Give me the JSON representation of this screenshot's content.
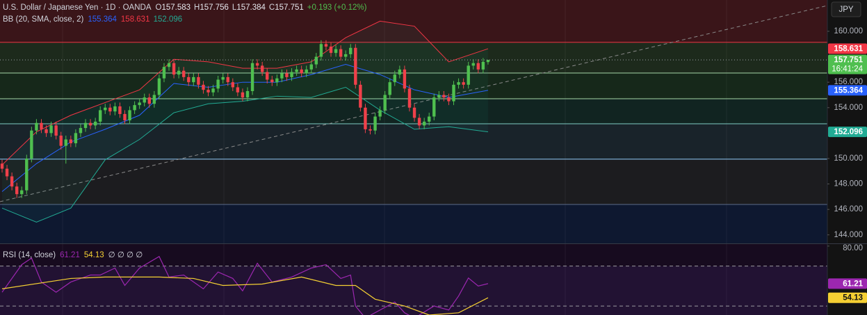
{
  "header": {
    "symbol": "U.S. Dollar / Japanese Yen · 1D · OANDA",
    "ohlc": [
      {
        "key": "O",
        "value": "157.583"
      },
      {
        "key": "H",
        "value": "157.756"
      },
      {
        "key": "L",
        "value": "157.384"
      },
      {
        "key": "C",
        "value": "157.751"
      }
    ],
    "change": "+0.193 (+0.12%)",
    "bb_label": "BB (20, SMA, close, 2)",
    "bb_values": [
      {
        "text": "155.364",
        "color": "#2962ff"
      },
      {
        "text": "158.631",
        "color": "#f23645"
      },
      {
        "text": "152.096",
        "color": "#22ab94"
      }
    ],
    "rsi_label": "RSI (14, close)",
    "rsi_values": [
      {
        "text": "61.21",
        "color": "#9c27b0"
      },
      {
        "text": "54.13",
        "color": "#f5d033"
      }
    ],
    "rsi_extra": "∅ ∅ ∅ ∅",
    "currency": "JPY"
  },
  "chart_data": {
    "type": "candlestick",
    "open": [
      149.6,
      149.2,
      148.6,
      147.8,
      147.2,
      147.5,
      150.0,
      152.2,
      152.8,
      152.3,
      152.0,
      152.6,
      151.8,
      151.0,
      151.5,
      151.2,
      152.0,
      152.4,
      152.8,
      152.6,
      152.9,
      153.8,
      154.0,
      153.7,
      154.1,
      153.5,
      153.0,
      153.8,
      154.2,
      154.4,
      154.8,
      154.3,
      155.0,
      156.3,
      157.2,
      157.5,
      156.6,
      156.9,
      156.4,
      156.0,
      156.4,
      155.8,
      155.4,
      155.2,
      155.5,
      156.2,
      156.4,
      156.0,
      155.6,
      155.2,
      154.8,
      155.3,
      157.5,
      157.3,
      156.8,
      156.2,
      156.0,
      156.3,
      156.7,
      156.4,
      156.8,
      157.0,
      156.7,
      157.0,
      157.4,
      158.0,
      159.0,
      158.8,
      158.3,
      158.6,
      158.0,
      158.2,
      158.7,
      155.8,
      154.0,
      152.3,
      152.2,
      153.3,
      153.8,
      155.0,
      156.0,
      156.6,
      157.0,
      155.5,
      154.0,
      153.2,
      152.6,
      152.9,
      153.3,
      154.8,
      155.0,
      154.8,
      154.5,
      155.8,
      156.0,
      155.8,
      157.3,
      157.5,
      157.0,
      157.583
    ],
    "high": [
      149.9,
      149.5,
      148.9,
      148.1,
      147.8,
      150.3,
      152.5,
      153.1,
      153.1,
      152.6,
      152.9,
      152.9,
      152.1,
      151.8,
      151.8,
      152.3,
      152.7,
      153.1,
      153.1,
      153.2,
      154.1,
      154.3,
      154.3,
      154.4,
      154.4,
      153.8,
      154.1,
      154.5,
      154.7,
      155.1,
      155.1,
      155.3,
      156.6,
      157.5,
      157.8,
      157.8,
      157.2,
      157.2,
      156.7,
      156.7,
      156.7,
      156.1,
      155.7,
      155.8,
      156.5,
      156.7,
      156.7,
      156.3,
      155.9,
      155.5,
      155.6,
      157.8,
      157.8,
      157.6,
      157.1,
      156.5,
      156.6,
      157.0,
      157.0,
      157.1,
      157.3,
      157.3,
      157.3,
      157.7,
      158.3,
      159.3,
      159.3,
      159.1,
      158.9,
      158.9,
      158.5,
      159.0,
      159.0,
      156.1,
      154.3,
      152.6,
      153.6,
      154.1,
      155.3,
      156.3,
      156.9,
      157.3,
      157.3,
      155.8,
      154.3,
      153.5,
      153.2,
      153.6,
      155.1,
      155.3,
      155.3,
      155.1,
      156.1,
      156.3,
      156.3,
      157.6,
      157.8,
      157.8,
      157.9,
      157.756
    ],
    "low": [
      148.9,
      148.3,
      147.5,
      146.9,
      146.9,
      147.2,
      149.7,
      151.9,
      152.0,
      151.7,
      151.7,
      151.5,
      150.7,
      149.6,
      150.9,
      150.9,
      151.7,
      152.1,
      152.3,
      152.3,
      152.6,
      153.5,
      153.4,
      153.4,
      153.2,
      152.7,
      152.7,
      153.5,
      153.9,
      154.1,
      154.0,
      154.0,
      154.7,
      156.0,
      156.9,
      156.3,
      156.3,
      156.1,
      155.7,
      155.7,
      155.5,
      155.1,
      154.9,
      154.9,
      155.2,
      155.9,
      155.7,
      155.3,
      154.9,
      154.5,
      154.5,
      155.0,
      157.0,
      156.5,
      155.9,
      155.7,
      155.7,
      156.0,
      156.1,
      156.1,
      156.5,
      156.4,
      156.4,
      156.7,
      157.1,
      157.7,
      158.5,
      158.0,
      158.0,
      157.7,
      157.7,
      157.9,
      155.5,
      153.7,
      152.0,
      151.9,
      151.9,
      153.0,
      153.5,
      154.7,
      155.7,
      156.3,
      155.2,
      153.7,
      152.9,
      152.3,
      152.3,
      152.6,
      153.0,
      154.5,
      154.5,
      154.2,
      154.2,
      155.5,
      155.5,
      155.5,
      157.0,
      156.7,
      156.7,
      157.384
    ],
    "close": [
      149.2,
      148.6,
      147.8,
      147.2,
      147.5,
      150.0,
      152.2,
      152.8,
      152.3,
      152.0,
      152.6,
      151.8,
      151.0,
      151.5,
      151.2,
      152.0,
      152.4,
      152.8,
      152.6,
      152.9,
      153.8,
      154.0,
      153.7,
      154.1,
      153.5,
      153.0,
      153.8,
      154.2,
      154.4,
      154.8,
      154.3,
      155.0,
      156.3,
      157.2,
      157.5,
      156.6,
      156.9,
      156.4,
      156.0,
      156.4,
      155.8,
      155.4,
      155.2,
      155.5,
      156.2,
      156.4,
      156.0,
      155.6,
      155.2,
      154.8,
      155.3,
      157.5,
      157.3,
      156.8,
      156.2,
      156.0,
      156.3,
      156.7,
      156.4,
      156.8,
      157.0,
      156.7,
      157.0,
      157.4,
      158.0,
      159.0,
      158.8,
      158.3,
      158.6,
      158.0,
      158.2,
      158.7,
      155.8,
      154.0,
      152.3,
      152.2,
      153.3,
      153.8,
      155.0,
      156.0,
      156.6,
      157.0,
      155.5,
      154.0,
      153.2,
      152.6,
      152.9,
      153.3,
      154.8,
      155.0,
      154.8,
      154.5,
      155.8,
      156.0,
      155.8,
      157.3,
      157.5,
      157.0,
      157.6,
      157.751
    ],
    "up_color": "#4fbf4f",
    "down_color": "#f0404a",
    "ylim": [
      143.33,
      162.46
    ],
    "yticks": [
      {
        "value": 144,
        "label": "144.000"
      },
      {
        "value": 146,
        "label": "146.000"
      },
      {
        "value": 148,
        "label": "148.000"
      },
      {
        "value": 150,
        "label": "150.000"
      },
      {
        "value": 154,
        "label": "154.000"
      },
      {
        "value": 156,
        "label": "156.000"
      },
      {
        "value": 160,
        "label": "160.000"
      }
    ],
    "bands": {
      "index": [
        0,
        7,
        14,
        21,
        28,
        35,
        42,
        49,
        56,
        63,
        70,
        77,
        84,
        91,
        99
      ],
      "fill": "rgba(34,171,148,0.07)",
      "series": [
        {
          "color": "#f23645",
          "values": [
            149.5,
            152.1,
            153.4,
            154.4,
            155.4,
            157.8,
            157.6,
            157.1,
            157.1,
            157.6,
            159.5,
            160.8,
            160.4,
            157.6,
            158.631
          ]
        },
        {
          "color": "#2962ff",
          "values": [
            147.4,
            149.6,
            151.3,
            152.3,
            153.4,
            155.9,
            155.6,
            156.0,
            156.0,
            156.6,
            157.4,
            156.6,
            155.4,
            154.8,
            155.364
          ]
        },
        {
          "color": "#22ab94",
          "values": [
            146.1,
            145.0,
            146.1,
            149.9,
            151.5,
            153.6,
            154.3,
            154.5,
            154.9,
            154.8,
            155.6,
            153.8,
            152.3,
            152.5,
            152.096
          ]
        }
      ]
    },
    "levels": [
      {
        "value": 159.13,
        "color": "#f23645",
        "zone": "#3a1519"
      },
      {
        "value": 156.72,
        "color": "#a5d6a7",
        "zone": "#1d2a1c"
      },
      {
        "value": 154.7,
        "color": "#a5d6a7",
        "zone": "#16281a"
      },
      {
        "value": 152.73,
        "color": "#80cbc4",
        "zone": "#112421"
      },
      {
        "value": 149.95,
        "color": "#90caf9",
        "zone": "#19232a"
      },
      {
        "value": 146.39,
        "color": "#5c6b8a",
        "zone": "#1c1c1f"
      }
    ],
    "bottom_zone": "#0e1830",
    "price_labels": [
      {
        "text": "158.631",
        "value": 158.631,
        "color": "#f23645",
        "text_color": "#ffffff"
      },
      {
        "text": "157.751",
        "value": 157.751,
        "color": "#4fbf4f",
        "text_color": "#ffffff",
        "sub": "16:41:24"
      },
      {
        "text": "155.364",
        "value": 155.364,
        "color": "#2962ff",
        "text_color": "#ffffff"
      },
      {
        "text": "152.096",
        "value": 152.096,
        "color": "#22ab94",
        "text_color": "#ffffff"
      }
    ],
    "rsi": {
      "type": "line",
      "ylim": [
        45.5,
        81
      ],
      "yticks": [
        {
          "value": 80,
          "label": "80.00"
        }
      ],
      "levels": [
        70,
        50
      ],
      "series": [
        {
          "color": "#9c27b0",
          "index": [
            0,
            4,
            6,
            8,
            11,
            14,
            16,
            18,
            20,
            23,
            25,
            28,
            32,
            34,
            37,
            41,
            44,
            47,
            49,
            52,
            55,
            59,
            63,
            66,
            69,
            71,
            72,
            74,
            80,
            82,
            84,
            88,
            91,
            93,
            95,
            97,
            99
          ],
          "values": [
            56.9,
            70.7,
            74,
            62,
            56.9,
            62,
            63.8,
            65.5,
            65.5,
            69,
            60.3,
            69,
            74.8,
            64.5,
            65.5,
            58.6,
            67,
            63.8,
            57.6,
            71.4,
            62,
            64.5,
            69,
            70.7,
            63.8,
            65.5,
            50,
            44,
            52,
            46.6,
            44,
            50,
            48,
            55,
            64,
            60,
            61.21
          ]
        },
        {
          "color": "#f5d033",
          "index": [
            0,
            14,
            21,
            32,
            39,
            45,
            53,
            61,
            68,
            72,
            76,
            82,
            87,
            93,
            99
          ],
          "values": [
            58.6,
            63.8,
            64.5,
            64.5,
            63.8,
            60.3,
            61,
            64.5,
            60.3,
            60.3,
            53.4,
            50,
            45.5,
            46.6,
            54.13
          ]
        }
      ],
      "price_labels": [
        {
          "text": "61.21",
          "value": 61.21,
          "color": "#9c27b0",
          "text_color": "#ffffff"
        },
        {
          "text": "54.13",
          "value": 54.13,
          "color": "#f5d033",
          "text_color": "#131313"
        }
      ]
    }
  }
}
